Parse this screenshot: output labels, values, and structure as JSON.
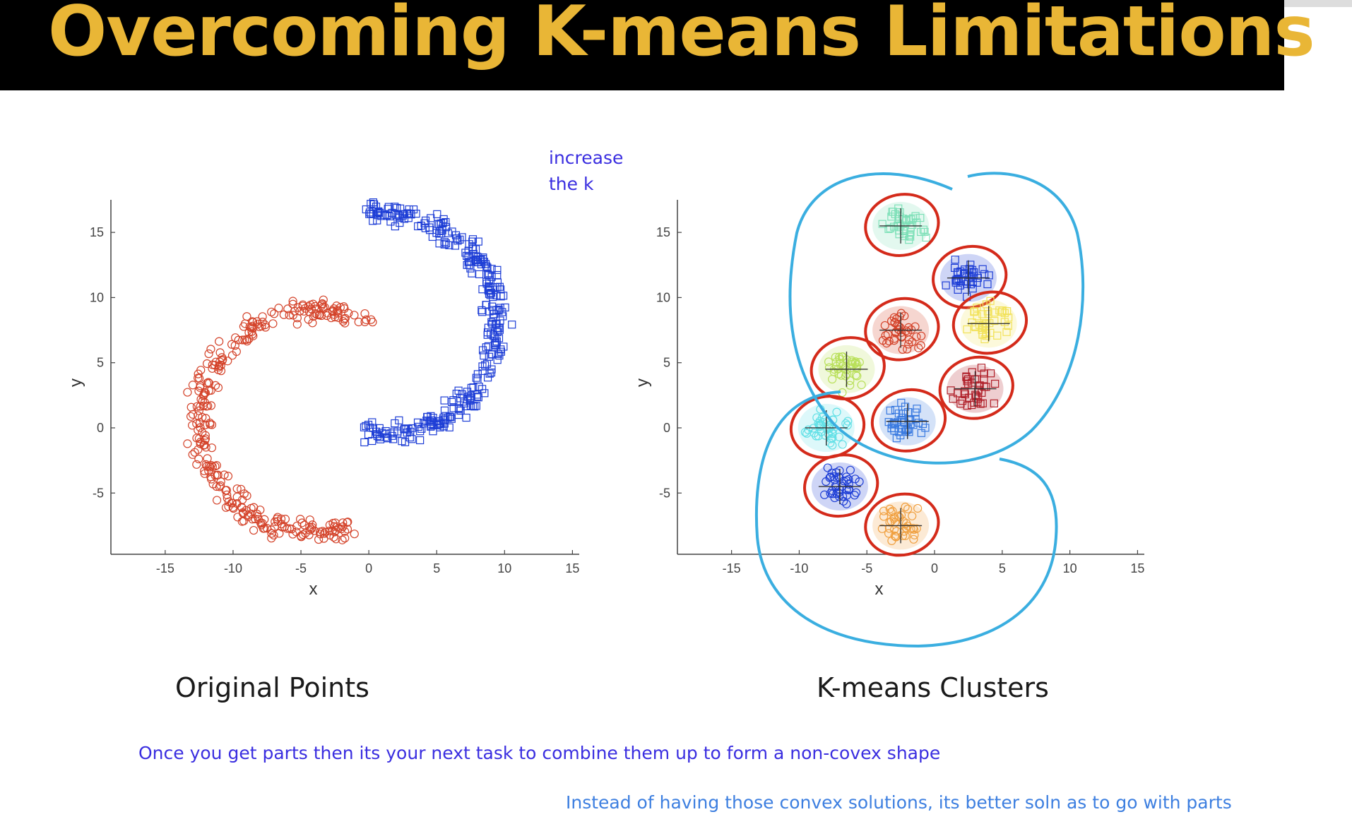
{
  "slide": {
    "title": "Overcoming K-means Limitations",
    "caption_left": "Original Points",
    "caption_right": "K-means Clusters",
    "annotations": {
      "increase_k_line1": "increase",
      "increase_k_line2": "the k",
      "combine_note": "Once you get parts then its your next task to combine them up to form a non-covex shape",
      "parts_note": "Instead of having those convex solutions, its better soln as to go with parts"
    },
    "colors": {
      "title_bg": "#000000",
      "title_text": "#e9b636",
      "handwriting_blue": "#3a2ee0",
      "handwriting_light": "#3d7fe0",
      "ink_red": "#d42a1a",
      "ink_cyan": "#3aaee0"
    }
  },
  "chart_data": [
    {
      "type": "scatter",
      "title": "Original Points",
      "xlabel": "x",
      "ylabel": "y",
      "xlim": [
        -19,
        15.5
      ],
      "ylim": [
        -9.7,
        17.5
      ],
      "xticks": [
        -15,
        -10,
        -5,
        0,
        5,
        10,
        15
      ],
      "yticks": [
        15,
        10,
        5,
        0,
        -5
      ],
      "grid": false,
      "series": [
        {
          "marker": "square",
          "color": "#1f3fd6",
          "shape": "upper-arc",
          "points": 320
        },
        {
          "marker": "circle",
          "color": "#d4432a",
          "shape": "lower-arc",
          "points": 320
        }
      ]
    },
    {
      "type": "scatter",
      "title": "K-means Clusters",
      "xlabel": "x",
      "ylabel": "y",
      "xlim": [
        -19,
        15.5
      ],
      "ylim": [
        -9.7,
        17.5
      ],
      "xticks": [
        -15,
        -10,
        -5,
        0,
        5,
        10,
        15
      ],
      "yticks": [
        15,
        10,
        5,
        0,
        -5
      ],
      "grid": false,
      "clusters": [
        {
          "centroid": [
            -2.5,
            15.5
          ],
          "marker": "square",
          "color": "#7ee0b8"
        },
        {
          "centroid": [
            2.5,
            11.5
          ],
          "marker": "square",
          "color": "#1f3fd6"
        },
        {
          "centroid": [
            -2.5,
            7.5
          ],
          "marker": "circle",
          "color": "#d4432a"
        },
        {
          "centroid": [
            4,
            8
          ],
          "marker": "square",
          "color": "#f2e25a"
        },
        {
          "centroid": [
            -6.5,
            4.5
          ],
          "marker": "circle",
          "color": "#b9e05a"
        },
        {
          "centroid": [
            3,
            3
          ],
          "marker": "square",
          "color": "#b0202a"
        },
        {
          "centroid": [
            -8,
            0
          ],
          "marker": "circle",
          "color": "#62e0e6"
        },
        {
          "centroid": [
            -2,
            0.5
          ],
          "marker": "square",
          "color": "#3a7ae0"
        },
        {
          "centroid": [
            -7,
            -4.5
          ],
          "marker": "circle",
          "color": "#1f3fd6"
        },
        {
          "centroid": [
            -2.5,
            -7.5
          ],
          "marker": "circle",
          "color": "#f0a040"
        }
      ]
    }
  ]
}
